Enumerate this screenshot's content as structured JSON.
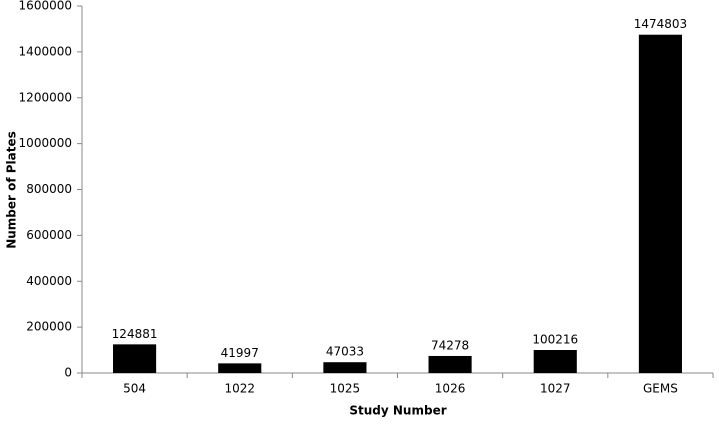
{
  "chart_data": {
    "type": "bar",
    "x_label": "Study Number",
    "y_label": "Number of Plates",
    "categories": [
      "504",
      "1022",
      "1025",
      "1026",
      "1027",
      "GEMS"
    ],
    "values": [
      124881,
      41997,
      47033,
      74278,
      100216,
      1474803
    ],
    "color": "#000000",
    "ylim": [
      0,
      1600000
    ],
    "yticks": [
      0,
      200000,
      400000,
      600000,
      800000,
      1000000,
      1200000,
      1400000,
      1600000
    ],
    "grid": false
  }
}
